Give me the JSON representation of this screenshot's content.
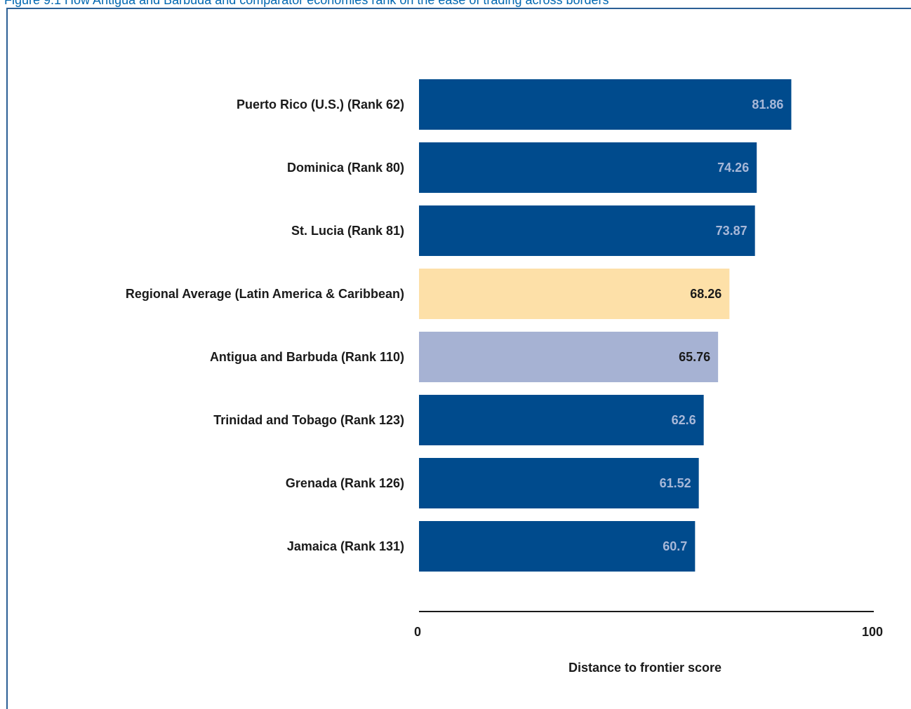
{
  "figure": {
    "title": "Figure 9.1 How Antigua and Barbuda and comparator economies rank on the ease of trading across borders"
  },
  "chart_data": {
    "type": "bar",
    "orientation": "horizontal",
    "categories": [
      "Puerto Rico (U.S.) (Rank 62)",
      "Dominica (Rank 80)",
      "St. Lucia (Rank 81)",
      "Regional Average (Latin America & Caribbean)",
      "Antigua and Barbuda (Rank 110)",
      "Trinidad and Tobago (Rank 123)",
      "Grenada (Rank 126)",
      "Jamaica (Rank 131)"
    ],
    "values": [
      81.86,
      74.26,
      73.87,
      68.26,
      65.76,
      62.6,
      61.52,
      60.7
    ],
    "value_labels": [
      "81.86",
      "74.26",
      "73.87",
      "68.26",
      "65.76",
      "62.6",
      "61.52",
      "60.7"
    ],
    "bar_colors": [
      "#004b8d",
      "#004b8d",
      "#004b8d",
      "#fde0a8",
      "#a6b2d3",
      "#004b8d",
      "#004b8d",
      "#004b8d"
    ],
    "label_colors": [
      "#a8b8d8",
      "#a8b8d8",
      "#a8b8d8",
      "#1a1a1a",
      "#1a1a1a",
      "#a8b8d8",
      "#a8b8d8",
      "#a8b8d8"
    ],
    "xlabel": "Distance to frontier score",
    "xlim": [
      0,
      100
    ],
    "xticks": [
      "0",
      "100"
    ],
    "grid": false
  }
}
